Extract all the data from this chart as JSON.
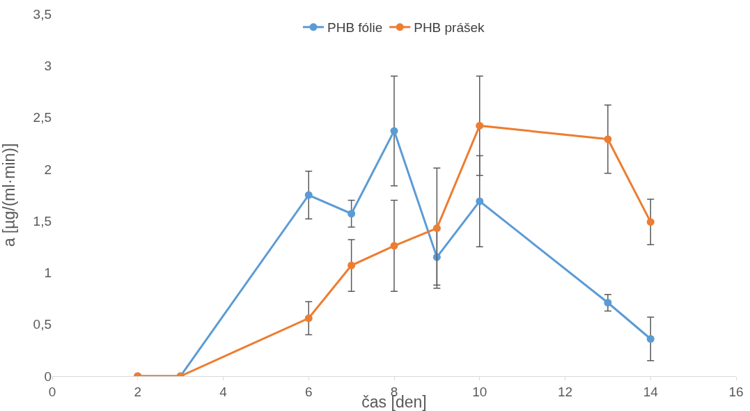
{
  "chart_data": {
    "type": "line",
    "xlabel": "čas [den]",
    "ylabel": "a [µg/(ml·min)]",
    "x": [
      2,
      3,
      6,
      7,
      8,
      9,
      10,
      13,
      14
    ],
    "series": [
      {
        "name": "PHB fólie",
        "color": "#5b9bd5",
        "values": [
          0,
          0,
          1.75,
          1.57,
          2.37,
          1.15,
          1.69,
          0.71,
          0.36
        ],
        "errors": [
          null,
          null,
          0.23,
          0.13,
          0.53,
          0.27,
          0.44,
          0.08,
          0.21
        ]
      },
      {
        "name": "PHB prášek",
        "color": "#ed7d31",
        "values": [
          0,
          0,
          0.56,
          1.07,
          1.26,
          1.43,
          2.42,
          2.29,
          1.49
        ],
        "errors": [
          null,
          null,
          0.16,
          0.25,
          0.44,
          0.58,
          0.48,
          0.33,
          0.22
        ]
      }
    ],
    "xlim": [
      0,
      16
    ],
    "xticks": [
      0,
      2,
      4,
      6,
      8,
      10,
      12,
      14,
      16
    ],
    "ylim": [
      0,
      3.5
    ],
    "yticks": [
      0,
      {
        "value": 0.5,
        "label": "0,5"
      },
      1,
      {
        "value": 1.5,
        "label": "1,5"
      },
      2,
      {
        "value": 2.5,
        "label": "2,5"
      },
      3,
      {
        "value": 3.5,
        "label": "3,5"
      }
    ],
    "grid": false,
    "legend": "top",
    "marker": "circle",
    "line_style": "solid"
  }
}
